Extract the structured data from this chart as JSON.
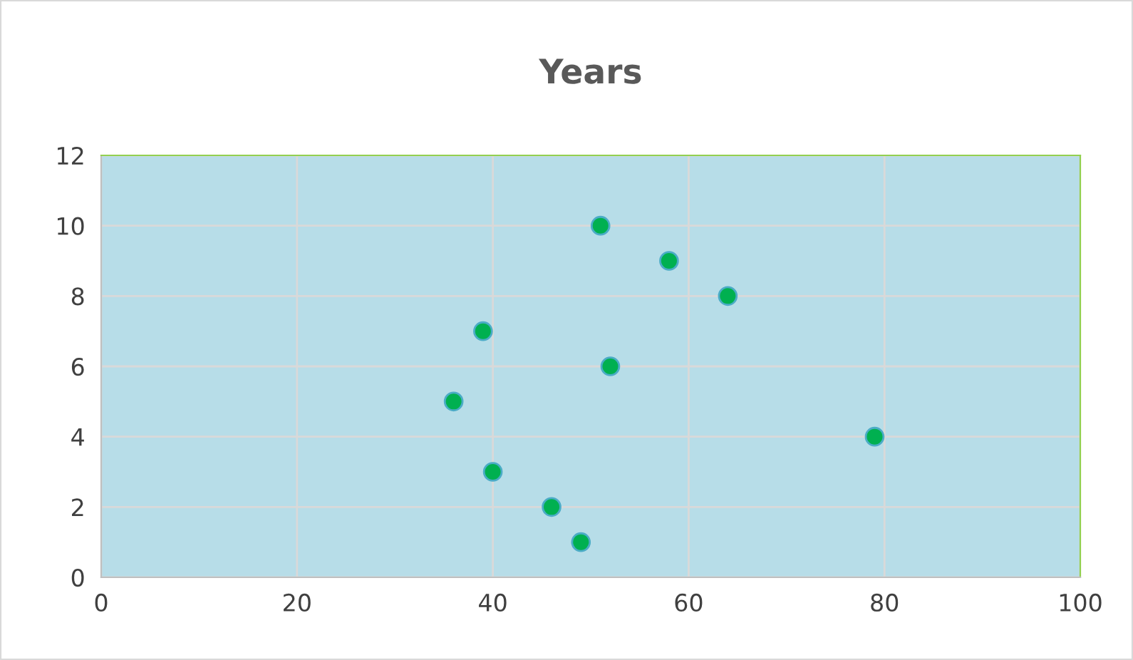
{
  "chart_data": {
    "type": "scatter",
    "title": "Years",
    "x": [
      51,
      58,
      64,
      39,
      52,
      36,
      79,
      40,
      46,
      49
    ],
    "values": [
      10,
      9,
      8,
      7,
      6,
      5,
      4,
      3,
      2,
      1
    ],
    "color": "#00b050",
    "xlim": [
      0,
      100
    ],
    "xticks": [
      0,
      20,
      40,
      60,
      80,
      100
    ],
    "ylim": [
      0,
      12
    ],
    "yticks": [
      0,
      2,
      4,
      6,
      8,
      10,
      12
    ],
    "grid": true,
    "marker": "circle"
  }
}
